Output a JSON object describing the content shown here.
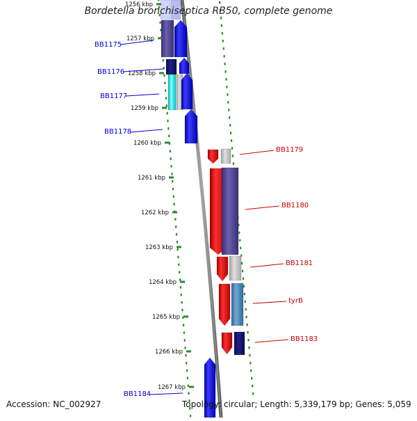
{
  "title": "Bordetella bronchiseptica RB50, complete genome",
  "accession": "Accession: NC_002927",
  "summary": "Topology: circular; Length: 5,339,179 bp; Genes: 5,059",
  "colors": {
    "tick": "#2d8a2d",
    "left_label": "#0000cc",
    "right_label": "#cc0000",
    "backbone": "#888888"
  },
  "kbp_ticks": [
    "1256 kbp",
    "1257 kbp",
    "1258 kbp",
    "1259 kbp",
    "1260 kbp",
    "1261 kbp",
    "1262 kbp",
    "1263 kbp",
    "1264 kbp",
    "1265 kbp",
    "1266 kbp",
    "1267 kbp"
  ],
  "genes": [
    {
      "label": "BB1175",
      "side": "left"
    },
    {
      "label": "BB1176",
      "side": "left"
    },
    {
      "label": "BB1177",
      "side": "left"
    },
    {
      "label": "BB1178",
      "side": "left"
    },
    {
      "label": "BB1179",
      "side": "right"
    },
    {
      "label": "BB1180",
      "side": "right"
    },
    {
      "label": "BB1181",
      "side": "right"
    },
    {
      "label": "tyrB",
      "side": "right"
    },
    {
      "label": "BB1183",
      "side": "right"
    },
    {
      "label": "BB1184",
      "side": "left"
    }
  ]
}
